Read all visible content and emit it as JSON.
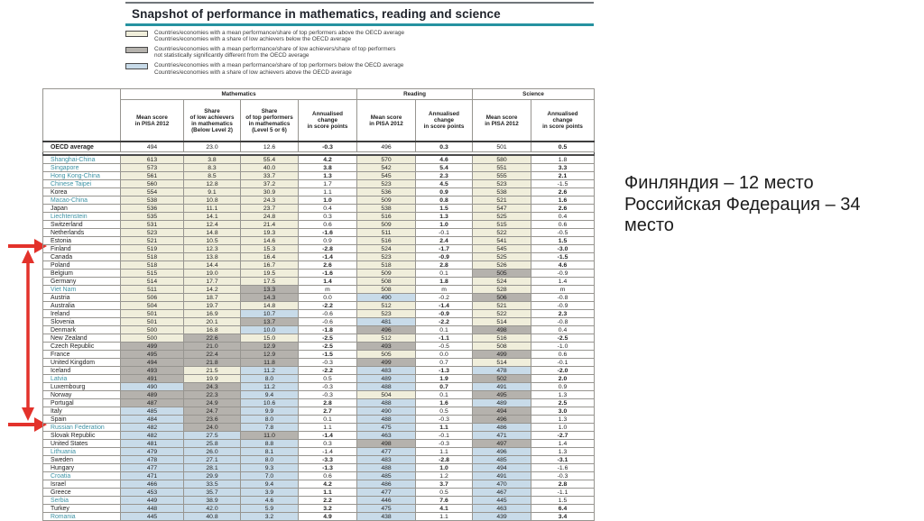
{
  "title": "Snapshot of performance in mathematics, reading and science",
  "colors": {
    "above_avg_fill": "#f0eedb",
    "not_sig_fill": "#b5b2ad",
    "below_avg_fill": "#c8dbe9",
    "partner_country": "#3e93a5",
    "title_rule": "#2592a0",
    "annotation_red": "#e3322b"
  },
  "legend": {
    "items": [
      {
        "swatch_color": "#f0eedb",
        "lines": [
          "Countries/economies with a mean performance/share of top performers above the OECD average",
          "Countries/economies with a share of low achievers below the OECD average"
        ]
      },
      {
        "swatch_color": "#b5b2ad",
        "lines": [
          "Countries/economies with a mean performance/share of low achievers/share of top performers",
          "not statistically significantly different from the OECD average"
        ]
      },
      {
        "swatch_color": "#c8dbe9",
        "lines": [
          "Countries/economies with a mean performance/share of top performers below the OECD average",
          "Countries/economies with a share of low achievers above the OECD average"
        ]
      }
    ]
  },
  "table": {
    "group_headers": [
      "Mathematics",
      "Reading",
      "Science"
    ],
    "col_headers": [
      "Mean score\nin PISA 2012",
      "Share\nof low achievers\nin mathematics\n(Below Level 2)",
      "Share\nof top performers\nin mathematics\n(Level 5 or 6)",
      "Annualised\nchange\nin score points",
      "Mean score\nin PISA 2012",
      "Annualised\nchange\nin score points",
      "Mean score\nin PISA 2012",
      "Annualised\nchange\nin score points"
    ],
    "oecd_average": {
      "name": "OECD average",
      "partner": false,
      "values": [
        "494",
        "23.0",
        "12.6",
        "-0.3",
        "496",
        "0.3",
        "501",
        "0.5"
      ],
      "fills": "wwwww",
      "bold": "111"
    },
    "rows": [
      {
        "name": "Shanghai-China",
        "partner": true,
        "values": [
          "613",
          "3.8",
          "55.4",
          "4.2",
          "570",
          "4.6",
          "580",
          "1.8"
        ],
        "fills": "ccccc",
        "bold": "110"
      },
      {
        "name": "Singapore",
        "partner": true,
        "values": [
          "573",
          "8.3",
          "40.0",
          "3.8",
          "542",
          "5.4",
          "551",
          "3.3"
        ],
        "fills": "ccccc",
        "bold": "111"
      },
      {
        "name": "Hong Kong-China",
        "partner": true,
        "values": [
          "561",
          "8.5",
          "33.7",
          "1.3",
          "545",
          "2.3",
          "555",
          "2.1"
        ],
        "fills": "ccccc",
        "bold": "111"
      },
      {
        "name": "Chinese Taipei",
        "partner": true,
        "values": [
          "560",
          "12.8",
          "37.2",
          "1.7",
          "523",
          "4.5",
          "523",
          "-1.5"
        ],
        "fills": "ccccc",
        "bold": "010"
      },
      {
        "name": "Korea",
        "partner": false,
        "values": [
          "554",
          "9.1",
          "30.9",
          "1.1",
          "536",
          "0.9",
          "538",
          "2.6"
        ],
        "fills": "ccccc",
        "bold": "011"
      },
      {
        "name": "Macao-China",
        "partner": true,
        "values": [
          "538",
          "10.8",
          "24.3",
          "1.0",
          "509",
          "0.8",
          "521",
          "1.6"
        ],
        "fills": "ccccc",
        "bold": "111"
      },
      {
        "name": "Japan",
        "partner": false,
        "values": [
          "536",
          "11.1",
          "23.7",
          "0.4",
          "538",
          "1.5",
          "547",
          "2.6"
        ],
        "fills": "ccccc",
        "bold": "011"
      },
      {
        "name": "Liechtenstein",
        "partner": true,
        "values": [
          "535",
          "14.1",
          "24.8",
          "0.3",
          "516",
          "1.3",
          "525",
          "0.4"
        ],
        "fills": "ccccc",
        "bold": "010"
      },
      {
        "name": "Switzerland",
        "partner": false,
        "values": [
          "531",
          "12.4",
          "21.4",
          "0.6",
          "509",
          "1.0",
          "515",
          "0.6"
        ],
        "fills": "ccccc",
        "bold": "010"
      },
      {
        "name": "Netherlands",
        "partner": false,
        "values": [
          "523",
          "14.8",
          "19.3",
          "-1.6",
          "511",
          "-0.1",
          "522",
          "-0.5"
        ],
        "fills": "ccccc",
        "bold": "100"
      },
      {
        "name": "Estonia",
        "partner": false,
        "values": [
          "521",
          "10.5",
          "14.6",
          "0.9",
          "516",
          "2.4",
          "541",
          "1.5"
        ],
        "fills": "ccccc",
        "bold": "011"
      },
      {
        "name": "Finland",
        "partner": false,
        "values": [
          "519",
          "12.3",
          "15.3",
          "-2.8",
          "524",
          "-1.7",
          "545",
          "-3.0"
        ],
        "fills": "ccccc",
        "bold": "111"
      },
      {
        "name": "Canada",
        "partner": false,
        "values": [
          "518",
          "13.8",
          "16.4",
          "-1.4",
          "523",
          "-0.9",
          "525",
          "-1.5"
        ],
        "fills": "ccccc",
        "bold": "111"
      },
      {
        "name": "Poland",
        "partner": false,
        "values": [
          "518",
          "14.4",
          "16.7",
          "2.6",
          "518",
          "2.8",
          "526",
          "4.6"
        ],
        "fills": "ccccc",
        "bold": "111"
      },
      {
        "name": "Belgium",
        "partner": false,
        "values": [
          "515",
          "19.0",
          "19.5",
          "-1.6",
          "509",
          "0.1",
          "505",
          "-0.9"
        ],
        "fills": "ccccg",
        "bold": "100"
      },
      {
        "name": "Germany",
        "partner": false,
        "values": [
          "514",
          "17.7",
          "17.5",
          "1.4",
          "508",
          "1.8",
          "524",
          "1.4"
        ],
        "fills": "ccccc",
        "bold": "110"
      },
      {
        "name": "Viet Nam",
        "partner": true,
        "values": [
          "511",
          "14.2",
          "13.3",
          "m",
          "508",
          "m",
          "528",
          "m"
        ],
        "fills": "ccgcc",
        "bold": "000"
      },
      {
        "name": "Austria",
        "partner": false,
        "values": [
          "506",
          "18.7",
          "14.3",
          "0.0",
          "490",
          "-0.2",
          "506",
          "-0.8"
        ],
        "fills": "ccgbg",
        "bold": "000"
      },
      {
        "name": "Australia",
        "partner": false,
        "values": [
          "504",
          "19.7",
          "14.8",
          "-2.2",
          "512",
          "-1.4",
          "521",
          "-0.9"
        ],
        "fills": "ccccc",
        "bold": "110"
      },
      {
        "name": "Ireland",
        "partner": false,
        "values": [
          "501",
          "16.9",
          "10.7",
          "-0.6",
          "523",
          "-0.9",
          "522",
          "2.3"
        ],
        "fills": "ccbcc",
        "bold": "011"
      },
      {
        "name": "Slovenia",
        "partner": false,
        "values": [
          "501",
          "20.1",
          "13.7",
          "-0.6",
          "481",
          "-2.2",
          "514",
          "-0.8"
        ],
        "fills": "ccgbc",
        "bold": "010"
      },
      {
        "name": "Denmark",
        "partner": false,
        "values": [
          "500",
          "16.8",
          "10.0",
          "-1.8",
          "496",
          "0.1",
          "498",
          "0.4"
        ],
        "fills": "ccbgg",
        "bold": "100"
      },
      {
        "name": "New Zealand",
        "partner": false,
        "values": [
          "500",
          "22.6",
          "15.0",
          "-2.5",
          "512",
          "-1.1",
          "516",
          "-2.5"
        ],
        "fills": "cgccc",
        "bold": "111"
      },
      {
        "name": "Czech Republic",
        "partner": false,
        "values": [
          "499",
          "21.0",
          "12.9",
          "-2.5",
          "493",
          "-0.5",
          "508",
          "-1.0"
        ],
        "fills": "ggggc",
        "bold": "100"
      },
      {
        "name": "France",
        "partner": false,
        "values": [
          "495",
          "22.4",
          "12.9",
          "-1.5",
          "505",
          "0.0",
          "499",
          "0.6"
        ],
        "fills": "gggcg",
        "bold": "100"
      },
      {
        "name": "United Kingdom",
        "partner": false,
        "values": [
          "494",
          "21.8",
          "11.8",
          "-0.3",
          "499",
          "0.7",
          "514",
          "-0.1"
        ],
        "fills": "ggggc",
        "bold": "000"
      },
      {
        "name": "Iceland",
        "partner": false,
        "values": [
          "493",
          "21.5",
          "11.2",
          "-2.2",
          "483",
          "-1.3",
          "478",
          "-2.0"
        ],
        "fills": "gcbbb",
        "bold": "111"
      },
      {
        "name": "Latvia",
        "partner": true,
        "values": [
          "491",
          "19.9",
          "8.0",
          "0.5",
          "489",
          "1.9",
          "502",
          "2.0"
        ],
        "fills": "gcbbg",
        "bold": "011"
      },
      {
        "name": "Luxembourg",
        "partner": false,
        "values": [
          "490",
          "24.3",
          "11.2",
          "-0.3",
          "488",
          "0.7",
          "491",
          "0.9"
        ],
        "fills": "bgbbb",
        "bold": "010"
      },
      {
        "name": "Norway",
        "partner": false,
        "values": [
          "489",
          "22.3",
          "9.4",
          "-0.3",
          "504",
          "0.1",
          "495",
          "1.3"
        ],
        "fills": "ggbcg",
        "bold": "000"
      },
      {
        "name": "Portugal",
        "partner": false,
        "values": [
          "487",
          "24.9",
          "10.6",
          "2.8",
          "488",
          "1.6",
          "489",
          "2.5"
        ],
        "fills": "ggbbb",
        "bold": "111"
      },
      {
        "name": "Italy",
        "partner": false,
        "values": [
          "485",
          "24.7",
          "9.9",
          "2.7",
          "490",
          "0.5",
          "494",
          "3.0"
        ],
        "fills": "bgbbg",
        "bold": "101"
      },
      {
        "name": "Spain",
        "partner": false,
        "values": [
          "484",
          "23.6",
          "8.0",
          "0.1",
          "488",
          "-0.3",
          "496",
          "1.3"
        ],
        "fills": "bgbbg",
        "bold": "000"
      },
      {
        "name": "Russian Federation",
        "partner": true,
        "values": [
          "482",
          "24.0",
          "7.8",
          "1.1",
          "475",
          "1.1",
          "486",
          "1.0"
        ],
        "fills": "bgbbb",
        "bold": "010"
      },
      {
        "name": "Slovak Republic",
        "partner": false,
        "values": [
          "482",
          "27.5",
          "11.0",
          "-1.4",
          "463",
          "-0.1",
          "471",
          "-2.7"
        ],
        "fills": "bbgbb",
        "bold": "101"
      },
      {
        "name": "United States",
        "partner": false,
        "values": [
          "481",
          "25.8",
          "8.8",
          "0.3",
          "498",
          "-0.3",
          "497",
          "1.4"
        ],
        "fills": "bbbgg",
        "bold": "000"
      },
      {
        "name": "Lithuania",
        "partner": true,
        "values": [
          "479",
          "26.0",
          "8.1",
          "-1.4",
          "477",
          "1.1",
          "496",
          "1.3"
        ],
        "fills": "bbbbb",
        "bold": "000"
      },
      {
        "name": "Sweden",
        "partner": false,
        "values": [
          "478",
          "27.1",
          "8.0",
          "-3.3",
          "483",
          "-2.8",
          "485",
          "-3.1"
        ],
        "fills": "bbbbb",
        "bold": "111"
      },
      {
        "name": "Hungary",
        "partner": false,
        "values": [
          "477",
          "28.1",
          "9.3",
          "-1.3",
          "488",
          "1.0",
          "494",
          "-1.6"
        ],
        "fills": "bbbbb",
        "bold": "110"
      },
      {
        "name": "Croatia",
        "partner": true,
        "values": [
          "471",
          "29.9",
          "7.0",
          "0.6",
          "485",
          "1.2",
          "491",
          "-0.3"
        ],
        "fills": "bbbbb",
        "bold": "000"
      },
      {
        "name": "Israel",
        "partner": false,
        "values": [
          "466",
          "33.5",
          "9.4",
          "4.2",
          "486",
          "3.7",
          "470",
          "2.8"
        ],
        "fills": "bbbbb",
        "bold": "111"
      },
      {
        "name": "Greece",
        "partner": false,
        "values": [
          "453",
          "35.7",
          "3.9",
          "1.1",
          "477",
          "0.5",
          "467",
          "-1.1"
        ],
        "fills": "bbbbb",
        "bold": "100"
      },
      {
        "name": "Serbia",
        "partner": true,
        "values": [
          "449",
          "38.9",
          "4.6",
          "2.2",
          "446",
          "7.6",
          "445",
          "1.5"
        ],
        "fills": "bbbbb",
        "bold": "110"
      },
      {
        "name": "Turkey",
        "partner": false,
        "values": [
          "448",
          "42.0",
          "5.9",
          "3.2",
          "475",
          "4.1",
          "463",
          "6.4"
        ],
        "fills": "bbbbb",
        "bold": "111"
      },
      {
        "name": "Romania",
        "partner": true,
        "values": [
          "445",
          "40.8",
          "3.2",
          "4.9",
          "438",
          "1.1",
          "439",
          "3.4"
        ],
        "fills": "bbbbb",
        "bold": "101"
      }
    ]
  },
  "annotation": {
    "lines": [
      "Финляндия – 12 место",
      "Российская Федерация – 34",
      "место"
    ]
  }
}
